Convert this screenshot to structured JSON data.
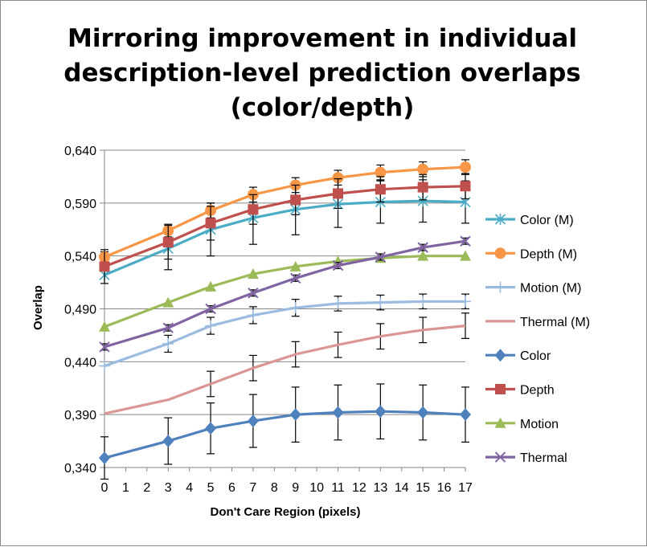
{
  "chart_data": {
    "type": "line",
    "title_lines": [
      "Mirroring improvement in individual",
      "description-level prediction overlaps",
      "(color/depth)"
    ],
    "xlabel": "Don't Care Region (pixels)",
    "ylabel": "Overlap",
    "x_ticks": [
      "0",
      "1",
      "2",
      "3",
      "4",
      "5",
      "6",
      "7",
      "8",
      "9",
      "10",
      "11",
      "12",
      "13",
      "14",
      "15",
      "16",
      "17"
    ],
    "y_ticks": [
      "0,340",
      "0,390",
      "0,440",
      "0,490",
      "0,540",
      "0,590",
      "0,640"
    ],
    "xlim": [
      0,
      17
    ],
    "ylim": [
      0.34,
      0.64
    ],
    "grid": "horizontal",
    "legend_position": "right",
    "x": [
      0,
      3,
      5,
      7,
      9,
      11,
      13,
      15,
      17
    ],
    "series": [
      {
        "name": "Color (M)",
        "color": "#4bacc6",
        "marker": "asterisk",
        "values": [
          0.522,
          0.547,
          0.565,
          0.576,
          0.584,
          0.589,
          0.591,
          0.592,
          0.591
        ],
        "error": [
          0,
          0.02,
          0.025,
          0.025,
          0.024,
          0.022,
          0.02,
          0.02,
          0.02
        ]
      },
      {
        "name": "Depth (M)",
        "color": "#f79646",
        "marker": "circle",
        "values": [
          0.539,
          0.564,
          0.583,
          0.598,
          0.607,
          0.614,
          0.619,
          0.622,
          0.624
        ],
        "error": [
          0.005,
          0.006,
          0.007,
          0.007,
          0.007,
          0.007,
          0.007,
          0.007,
          0.007
        ]
      },
      {
        "name": "Motion (M)",
        "color": "#9bbbe0",
        "marker": "plus",
        "values": [
          0.436,
          0.457,
          0.474,
          0.484,
          0.491,
          0.495,
          0.496,
          0.497,
          0.497
        ],
        "error": [
          0,
          0.008,
          0.008,
          0.008,
          0.008,
          0.007,
          0.007,
          0.007,
          0.007
        ]
      },
      {
        "name": "Thermal (M)",
        "color": "#d99694",
        "marker": "none",
        "values": [
          0.391,
          0.404,
          0.419,
          0.434,
          0.447,
          0.456,
          0.464,
          0.47,
          0.474
        ],
        "error": [
          0,
          0,
          0.012,
          0.012,
          0.012,
          0.012,
          0.012,
          0.012,
          0.012
        ]
      },
      {
        "name": "Color",
        "color": "#4f81bd",
        "marker": "diamond",
        "values": [
          0.349,
          0.365,
          0.377,
          0.384,
          0.39,
          0.392,
          0.393,
          0.392,
          0.39
        ],
        "error": [
          0.02,
          0.022,
          0.024,
          0.025,
          0.026,
          0.026,
          0.026,
          0.026,
          0.026
        ]
      },
      {
        "name": "Depth",
        "color": "#c0504d",
        "marker": "square",
        "values": [
          0.53,
          0.553,
          0.571,
          0.584,
          0.593,
          0.599,
          0.603,
          0.605,
          0.606
        ],
        "error": [
          0.016,
          0.016,
          0.016,
          0.014,
          0.014,
          0.014,
          0.012,
          0.012,
          0.012
        ]
      },
      {
        "name": "Motion",
        "color": "#9bbb59",
        "marker": "triangle",
        "values": [
          0.473,
          0.496,
          0.511,
          0.523,
          0.53,
          0.535,
          0.538,
          0.54,
          0.54
        ],
        "error": [
          0,
          0,
          0,
          0,
          0,
          0,
          0,
          0,
          0
        ]
      },
      {
        "name": "Thermal",
        "color": "#8064a2",
        "marker": "x",
        "values": [
          0.454,
          0.472,
          0.49,
          0.505,
          0.519,
          0.531,
          0.539,
          0.548,
          0.554
        ],
        "error": [
          0.003,
          0.003,
          0.003,
          0.003,
          0.003,
          0.003,
          0.003,
          0.003,
          0.003
        ]
      }
    ]
  }
}
